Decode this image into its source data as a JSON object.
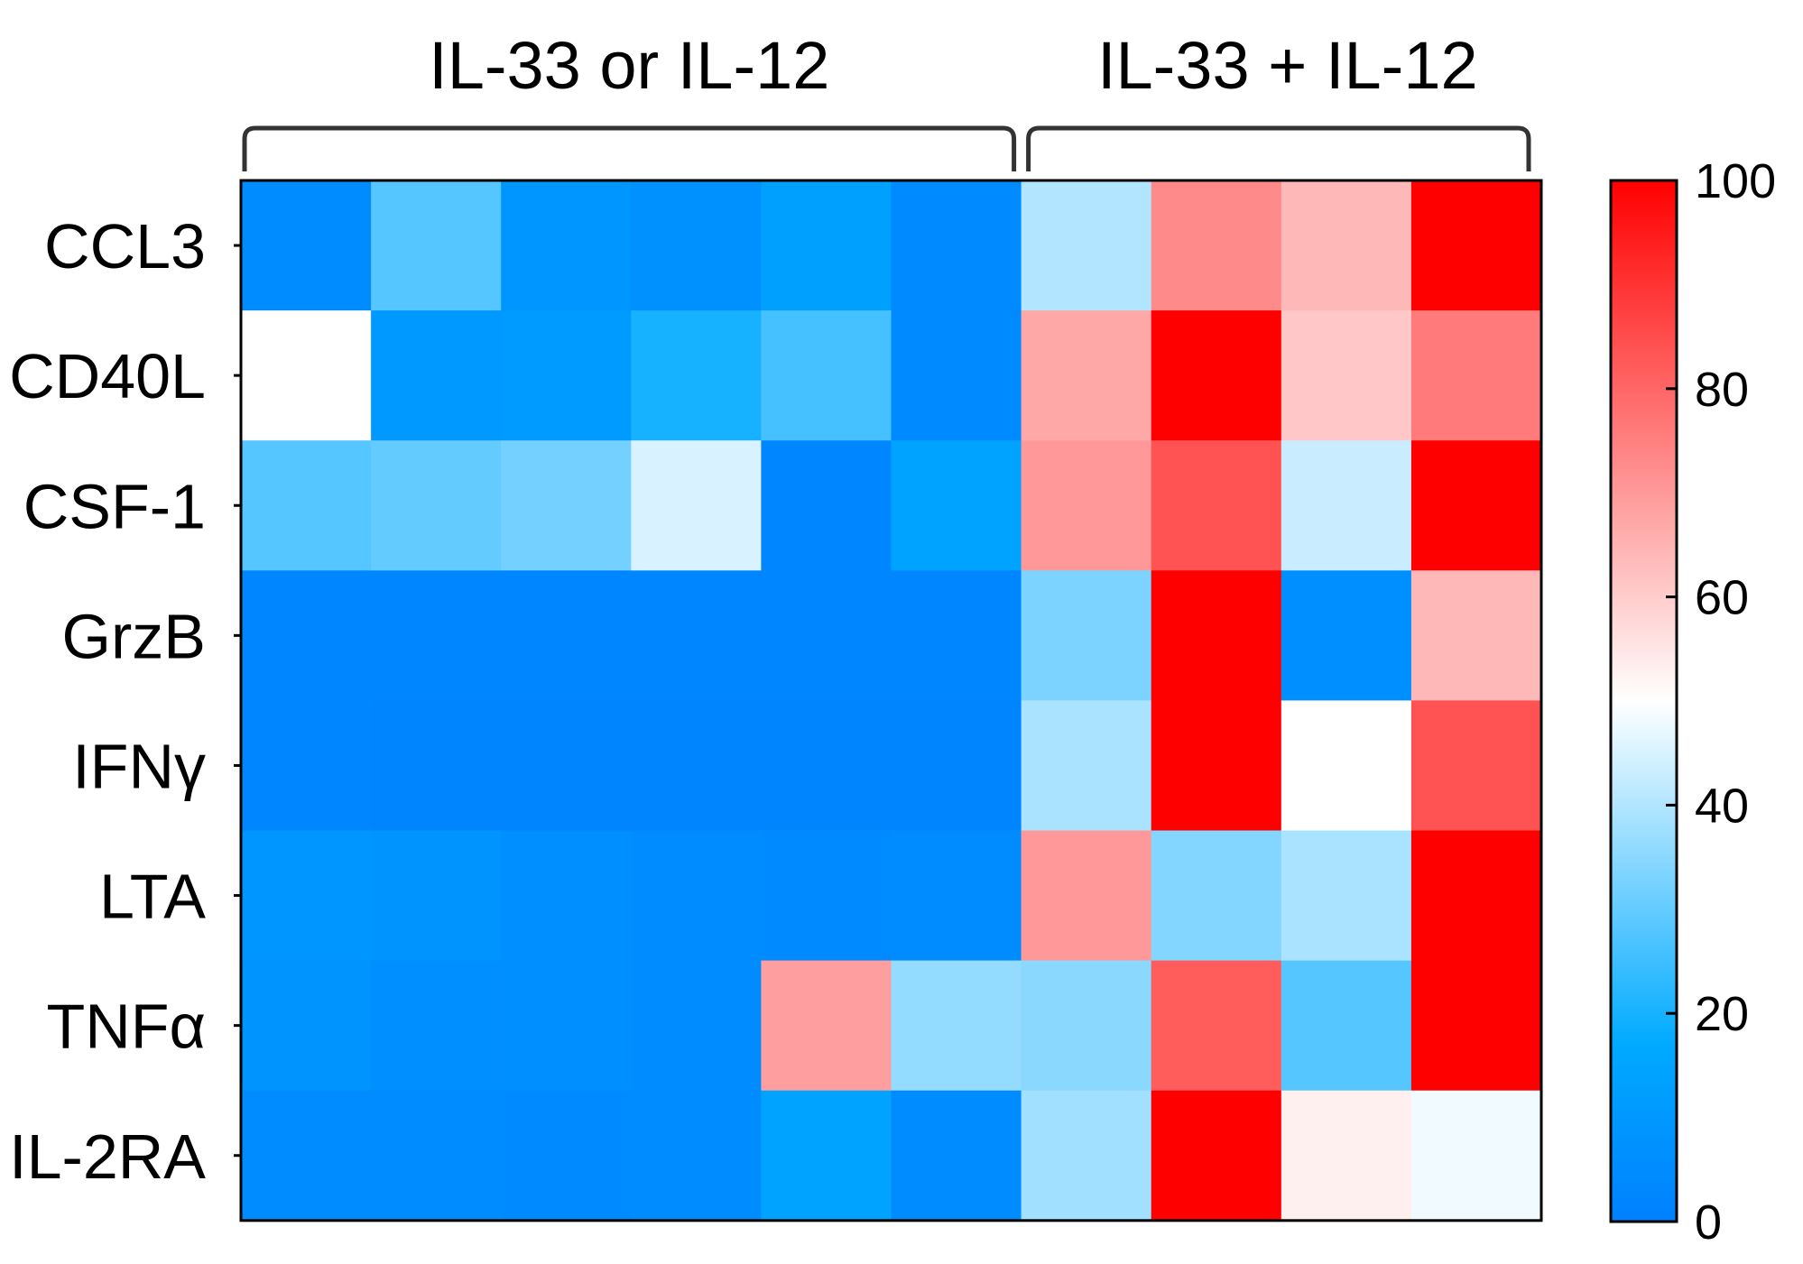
{
  "chart_data": {
    "type": "heatmap",
    "title": "",
    "groups": [
      {
        "label": "IL-33 or IL-12",
        "columns": 6
      },
      {
        "label": "IL-33 + IL-12",
        "columns": 4
      }
    ],
    "rows": [
      "CCL3",
      "CD40L",
      "CSF-1",
      "GrzB",
      "IFNγ",
      "LTA",
      "TNFα",
      "IL-2RA"
    ],
    "values": [
      [
        5,
        28,
        9,
        7,
        13,
        4,
        40,
        73,
        64,
        100
      ],
      [
        50,
        10,
        11,
        20,
        26,
        4,
        67,
        100,
        61,
        76
      ],
      [
        28,
        30,
        32,
        45,
        3,
        14,
        70,
        84,
        43,
        100
      ],
      [
        3,
        3,
        3,
        3,
        3,
        3,
        33,
        100,
        6,
        64
      ],
      [
        3,
        2,
        2,
        2,
        2,
        2,
        39,
        100,
        50,
        84
      ],
      [
        9,
        8,
        6,
        5,
        4,
        5,
        70,
        34,
        39,
        100
      ],
      [
        8,
        6,
        6,
        5,
        69,
        36,
        35,
        82,
        28,
        100
      ],
      [
        5,
        5,
        4,
        5,
        14,
        5,
        38,
        100,
        53,
        48
      ]
    ],
    "colorbar": {
      "min": 0,
      "max": 100,
      "ticks": [
        0,
        20,
        40,
        60,
        80,
        100
      ],
      "stops": [
        {
          "value": 0,
          "color": "#0080ff"
        },
        {
          "value": 17,
          "color": "#00aaff"
        },
        {
          "value": 50,
          "color": "#ffffff"
        },
        {
          "value": 100,
          "color": "#ff0000"
        }
      ]
    }
  }
}
